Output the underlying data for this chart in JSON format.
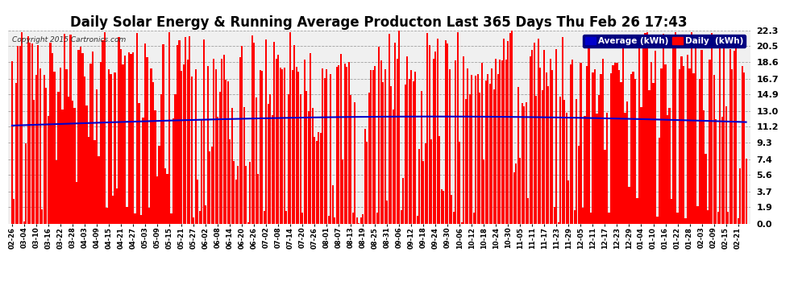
{
  "title": "Daily Solar Energy & Running Average Producton Last 365 Days Thu Feb 26 17:43",
  "copyright": "Copyright 2015 Cartronics.com",
  "yticks": [
    0.0,
    1.9,
    3.7,
    5.6,
    7.4,
    9.3,
    11.2,
    13.0,
    14.9,
    16.7,
    18.6,
    20.5,
    22.3
  ],
  "ylim_max": 22.3,
  "bar_color": "#ff0000",
  "avg_color": "#0000cc",
  "bg_color": "#ffffff",
  "plot_bg_color": "#f0f0f0",
  "grid_color": "#999999",
  "title_fontsize": 12,
  "legend_avg_label": "Average (kWh)",
  "legend_daily_label": "Daily  (kWh)",
  "n_bars": 365,
  "xtick_labels": [
    "02-26",
    "03-04",
    "03-10",
    "03-16",
    "03-22",
    "03-28",
    "04-03",
    "04-09",
    "04-15",
    "04-21",
    "04-27",
    "05-03",
    "05-09",
    "05-15",
    "05-21",
    "05-27",
    "06-02",
    "06-08",
    "06-14",
    "06-20",
    "06-26",
    "07-02",
    "07-08",
    "07-14",
    "07-20",
    "07-26",
    "08-01",
    "08-07",
    "08-13",
    "08-19",
    "08-25",
    "08-31",
    "09-06",
    "09-12",
    "09-18",
    "09-24",
    "09-30",
    "10-06",
    "10-12",
    "10-18",
    "10-24",
    "10-30",
    "11-05",
    "11-11",
    "11-17",
    "11-23",
    "11-29",
    "12-05",
    "12-11",
    "12-17",
    "12-23",
    "12-29",
    "01-04",
    "01-10",
    "01-16",
    "01-22",
    "01-28",
    "02-03",
    "02-09",
    "02-15",
    "02-21"
  ]
}
